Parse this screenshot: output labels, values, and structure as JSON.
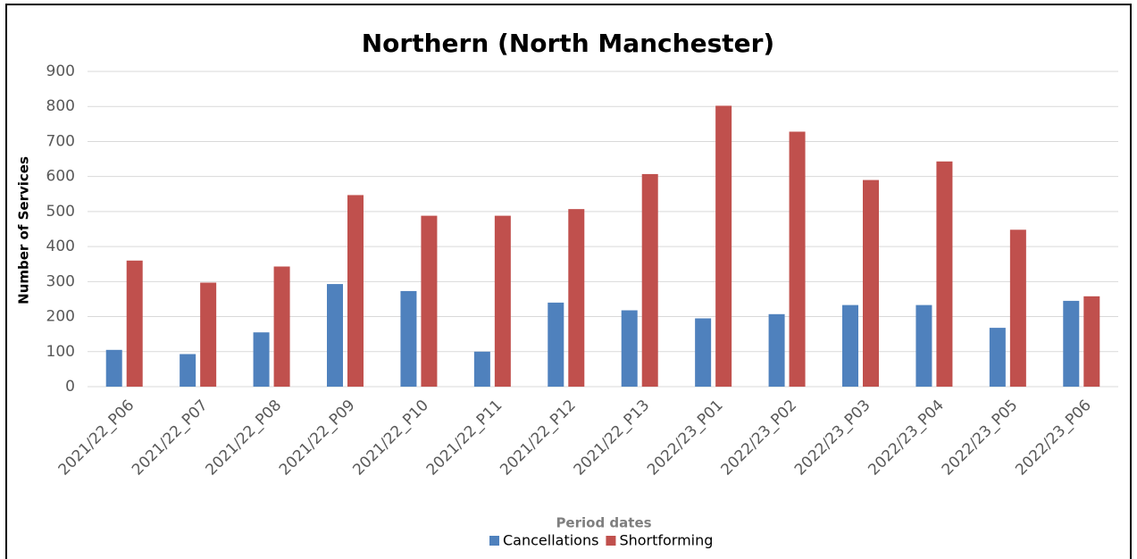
{
  "chart_data": {
    "type": "bar",
    "title": "Northern (North Manchester)",
    "x_label": "Period dates",
    "y_label": "Number of Services",
    "categories": [
      "2021/22_P06",
      "2021/22_P07",
      "2021/22_P08",
      "2021/22_P09",
      "2021/22_P10",
      "2021/22_P11",
      "2021/22_P12",
      "2021/22_P13",
      "2022/23_P01",
      "2022/23_P02",
      "2022/23_P03",
      "2022/23_P04",
      "2022/23_P05",
      "2022/23_P06"
    ],
    "series": [
      {
        "name": "Cancellations",
        "color": "#4f81bd",
        "values": [
          105,
          93,
          155,
          293,
          273,
          100,
          240,
          218,
          195,
          207,
          233,
          233,
          168,
          245
        ]
      },
      {
        "name": "Shortforming",
        "color": "#c0504d",
        "values": [
          360,
          297,
          343,
          547,
          488,
          488,
          507,
          607,
          802,
          728,
          590,
          643,
          448,
          258
        ]
      }
    ],
    "ylim": [
      0,
      900
    ],
    "yticks": [
      0,
      100,
      200,
      300,
      400,
      500,
      600,
      700,
      800,
      900
    ],
    "grid": true,
    "legend": "bottom"
  }
}
